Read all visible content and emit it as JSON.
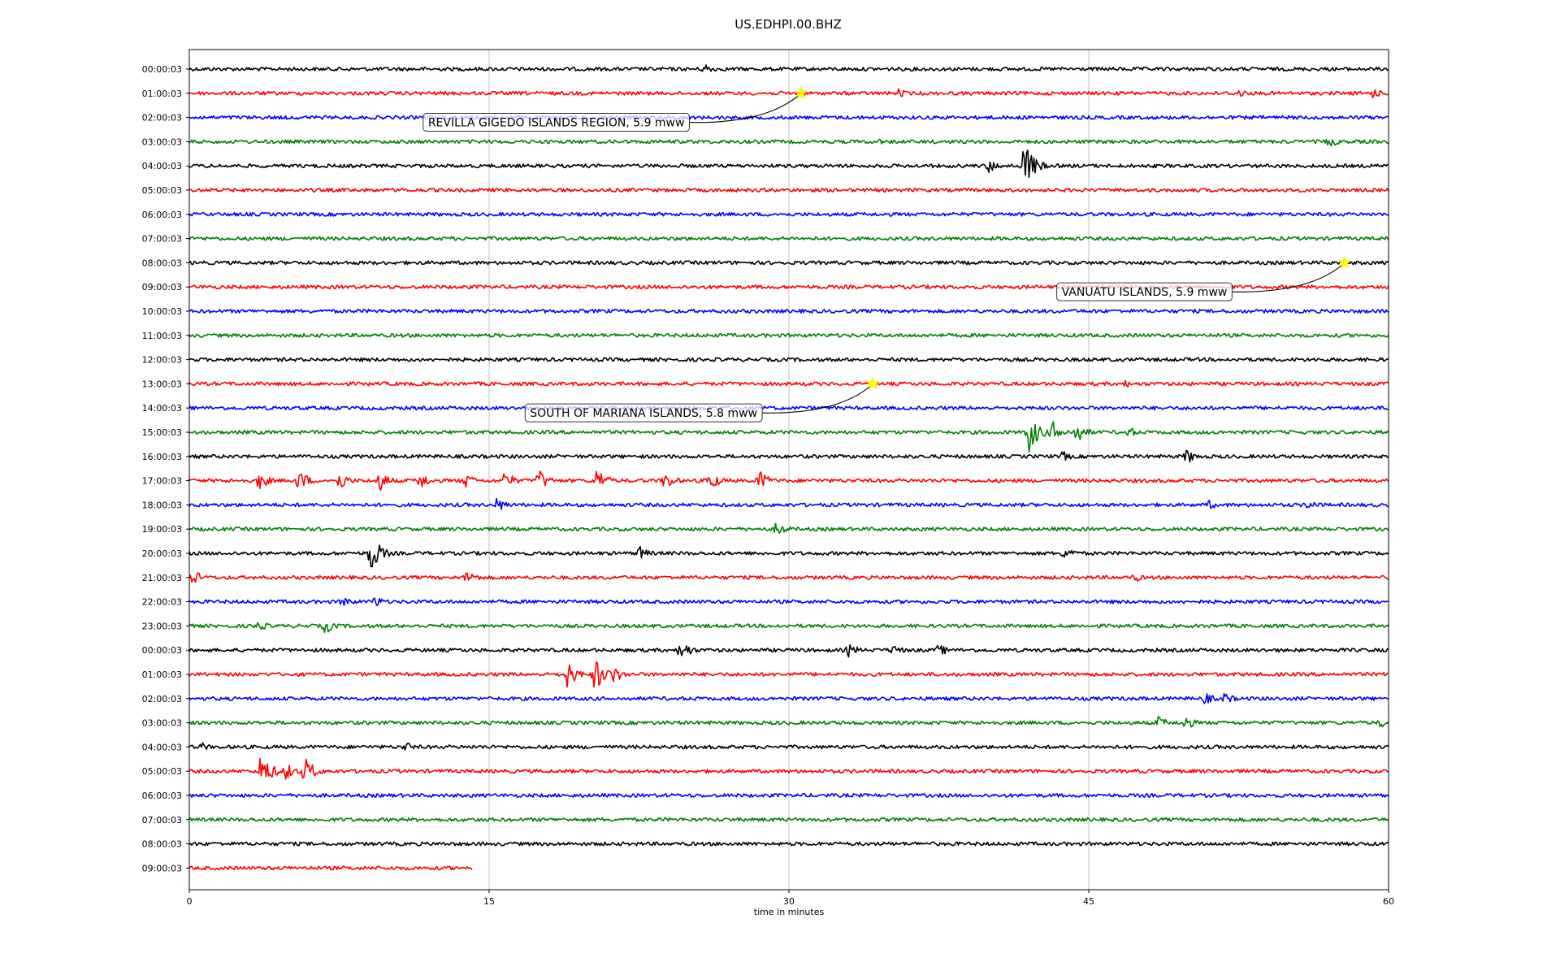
{
  "chart_data": {
    "type": "line",
    "title": "US.EDHPI.00.BHZ",
    "xlabel": "time in minutes",
    "ylabel": "",
    "xlim": [
      0,
      60
    ],
    "xticks": [
      0,
      15,
      30,
      45,
      60
    ],
    "grid": "vertical",
    "row_labels": [
      "00:00:03",
      "01:00:03",
      "02:00:03",
      "03:00:03",
      "04:00:03",
      "05:00:03",
      "06:00:03",
      "07:00:03",
      "08:00:03",
      "09:00:03",
      "10:00:03",
      "11:00:03",
      "12:00:03",
      "13:00:03",
      "14:00:03",
      "15:00:03",
      "16:00:03",
      "17:00:03",
      "18:00:03",
      "19:00:03",
      "20:00:03",
      "21:00:03",
      "22:00:03",
      "23:00:03",
      "00:00:03",
      "01:00:03",
      "02:00:03",
      "03:00:03",
      "04:00:03",
      "05:00:03",
      "06:00:03",
      "07:00:03",
      "08:00:03",
      "09:00:03"
    ],
    "row_colors": [
      "#000000",
      "#ff0000",
      "#0000ff",
      "#008000"
    ],
    "last_row_end_minute": 14.2,
    "events": [
      {
        "row": 1,
        "minute": 30.6,
        "label": "REVILLA GIGEDO ISLANDS REGION, 5.9 mww",
        "label_row": 2.2,
        "label_minute": 11.7
      },
      {
        "row": 8,
        "minute": 57.8,
        "label": "VANUATU ISLANDS, 5.9 mww",
        "label_row": 9.2,
        "label_minute": 43.4
      },
      {
        "row": 13,
        "minute": 34.2,
        "label": "SOUTH OF MARIANA ISLANDS, 5.8 mww",
        "label_row": 14.2,
        "label_minute": 16.8
      }
    ],
    "bursts": [
      {
        "row": 0,
        "minute": 25.8,
        "amp": 8
      },
      {
        "row": 1,
        "minute": 35.5,
        "amp": 6
      },
      {
        "row": 1,
        "minute": 52.5,
        "amp": 6
      },
      {
        "row": 1,
        "minute": 59.2,
        "amp": 7
      },
      {
        "row": 3,
        "minute": 34.5,
        "amp": 4
      },
      {
        "row": 3,
        "minute": 57.0,
        "amp": 8
      },
      {
        "row": 4,
        "minute": 40.0,
        "amp": 9
      },
      {
        "row": 4,
        "minute": 41.8,
        "amp": 30
      },
      {
        "row": 13,
        "minute": 46.8,
        "amp": 5
      },
      {
        "row": 15,
        "minute": 42.0,
        "amp": 26
      },
      {
        "row": 15,
        "minute": 43.2,
        "amp": 14
      },
      {
        "row": 15,
        "minute": 44.4,
        "amp": 14
      },
      {
        "row": 15,
        "minute": 47.0,
        "amp": 7
      },
      {
        "row": 16,
        "minute": 43.7,
        "amp": 7
      },
      {
        "row": 16,
        "minute": 49.9,
        "amp": 10
      },
      {
        "row": 17,
        "minute": 3.5,
        "amp": 12
      },
      {
        "row": 17,
        "minute": 5.5,
        "amp": 14
      },
      {
        "row": 17,
        "minute": 7.5,
        "amp": 12
      },
      {
        "row": 17,
        "minute": 9.5,
        "amp": 14
      },
      {
        "row": 17,
        "minute": 11.5,
        "amp": 12
      },
      {
        "row": 17,
        "minute": 13.8,
        "amp": 10
      },
      {
        "row": 17,
        "minute": 15.8,
        "amp": 12
      },
      {
        "row": 17,
        "minute": 17.5,
        "amp": 14
      },
      {
        "row": 17,
        "minute": 20.4,
        "amp": 16
      },
      {
        "row": 17,
        "minute": 23.8,
        "amp": 12
      },
      {
        "row": 17,
        "minute": 26.0,
        "amp": 14
      },
      {
        "row": 17,
        "minute": 28.5,
        "amp": 14
      },
      {
        "row": 18,
        "minute": 15.4,
        "amp": 10
      },
      {
        "row": 18,
        "minute": 51.0,
        "amp": 6
      },
      {
        "row": 18,
        "minute": 56.0,
        "amp": 7
      },
      {
        "row": 19,
        "minute": 29.4,
        "amp": 10
      },
      {
        "row": 20,
        "minute": 9.1,
        "amp": 24
      },
      {
        "row": 20,
        "minute": 22.5,
        "amp": 10
      },
      {
        "row": 20,
        "minute": 43.8,
        "amp": 10
      },
      {
        "row": 21,
        "minute": 0.2,
        "amp": 10
      },
      {
        "row": 21,
        "minute": 13.9,
        "amp": 10
      },
      {
        "row": 21,
        "minute": 47.3,
        "amp": 6
      },
      {
        "row": 22,
        "minute": 7.7,
        "amp": 8
      },
      {
        "row": 22,
        "minute": 9.3,
        "amp": 8
      },
      {
        "row": 23,
        "minute": 3.4,
        "amp": 8
      },
      {
        "row": 23,
        "minute": 6.8,
        "amp": 10
      },
      {
        "row": 24,
        "minute": 24.6,
        "amp": 14
      },
      {
        "row": 24,
        "minute": 33.0,
        "amp": 9
      },
      {
        "row": 24,
        "minute": 35.2,
        "amp": 8
      },
      {
        "row": 24,
        "minute": 37.5,
        "amp": 8
      },
      {
        "row": 25,
        "minute": 18.9,
        "amp": 18
      },
      {
        "row": 25,
        "minute": 20.3,
        "amp": 22
      },
      {
        "row": 25,
        "minute": 21.2,
        "amp": 12
      },
      {
        "row": 26,
        "minute": 50.8,
        "amp": 8
      },
      {
        "row": 26,
        "minute": 51.8,
        "amp": 8
      },
      {
        "row": 27,
        "minute": 48.5,
        "amp": 9
      },
      {
        "row": 27,
        "minute": 49.8,
        "amp": 10
      },
      {
        "row": 27,
        "minute": 59.6,
        "amp": 7
      },
      {
        "row": 28,
        "minute": 0.6,
        "amp": 6
      },
      {
        "row": 28,
        "minute": 10.8,
        "amp": 7
      },
      {
        "row": 29,
        "minute": 3.6,
        "amp": 24
      },
      {
        "row": 29,
        "minute": 5.8,
        "amp": 18
      },
      {
        "row": 29,
        "minute": 4.8,
        "amp": 12
      }
    ]
  }
}
